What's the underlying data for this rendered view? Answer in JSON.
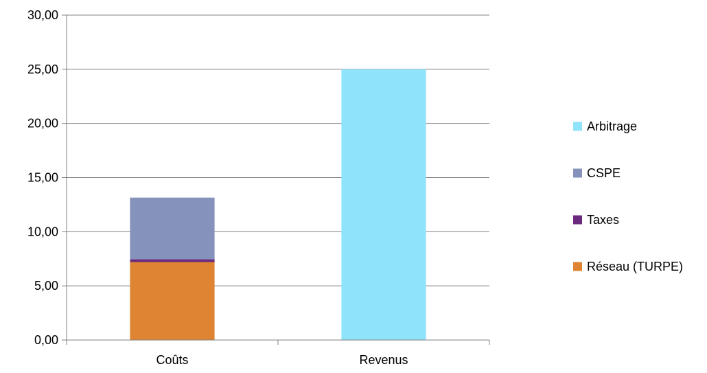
{
  "chart_data": {
    "type": "bar",
    "stacked": true,
    "categories": [
      "Coûts",
      "Revenus"
    ],
    "series": [
      {
        "name": "Réseau (TURPE)",
        "values": [
          7.2,
          0
        ],
        "color": "#DE8433"
      },
      {
        "name": "Taxes",
        "values": [
          0.25,
          0
        ],
        "color": "#6B2A7D"
      },
      {
        "name": "CSPE",
        "values": [
          5.7,
          0
        ],
        "color": "#8592BB"
      },
      {
        "name": "Arbitrage",
        "values": [
          0,
          25.0
        ],
        "color": "#8FE3FB"
      }
    ],
    "ylim": [
      0,
      30
    ],
    "yticks": [
      "0,00",
      "5,00",
      "10,00",
      "15,00",
      "20,00",
      "25,00",
      "30,00"
    ],
    "grid": true,
    "legend_position": "right",
    "legend_order": [
      "Arbitrage",
      "CSPE",
      "Taxes",
      "Réseau (TURPE)"
    ]
  }
}
